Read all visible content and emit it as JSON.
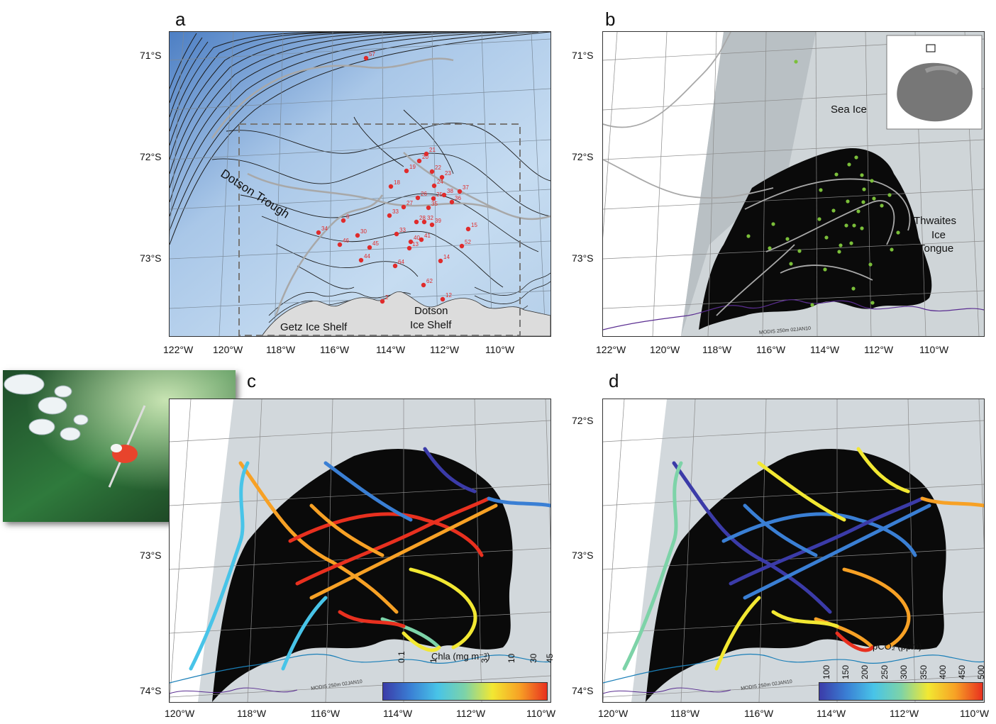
{
  "panels": {
    "a": {
      "letter": "a",
      "lat_labels": [
        "71°S",
        "72°S",
        "73°S"
      ],
      "lon_labels": [
        "122°W",
        "120°W",
        "118°W",
        "116°W",
        "114°W",
        "112°W",
        "110°W"
      ],
      "place_labels": {
        "trough": "Dotson Trough",
        "getz": "Getz Ice Shelf",
        "dotson_line1": "Dotson",
        "dotson_line2": "Ice Shelf"
      },
      "station_numbers": [
        "57",
        "21",
        "20",
        "22",
        "19",
        "23",
        "18",
        "24",
        "37",
        "26",
        "25",
        "38",
        "27",
        "35",
        "36",
        "28",
        "32",
        "33",
        "39",
        "15",
        "6",
        "30",
        "33",
        "34",
        "46",
        "40",
        "41",
        "45",
        "44",
        "13",
        "52",
        "64",
        "14",
        "62",
        "12",
        "2"
      ]
    },
    "b": {
      "letter": "b",
      "lat_labels": [
        "71°S",
        "72°S",
        "73°S"
      ],
      "lon_labels": [
        "122°W",
        "120°W",
        "118°W",
        "116°W",
        "114°W",
        "112°W",
        "110°W"
      ],
      "place_labels": {
        "sea_ice": "Sea Ice",
        "thwaites_1": "Thwaites",
        "thwaites_2": "Ice",
        "thwaites_3": "Tongue"
      },
      "modis_label": "MODIS 250m 02JAN10"
    },
    "c": {
      "letter": "c",
      "lat_labels": [
        "73°S",
        "74°S"
      ],
      "lon_labels": [
        "120°W",
        "118°W",
        "116°W",
        "114°W",
        "112°W",
        "110°W"
      ],
      "colorbar_title": "Chla (mg m⁻³)",
      "colorbar_ticks": [
        "0.1",
        "1",
        "3",
        "10",
        "30",
        "45"
      ],
      "modis_label": "MODIS 250m 02JAN10"
    },
    "d": {
      "letter": "d",
      "lat_labels": [
        "72°S",
        "73°S",
        "74°S"
      ],
      "lon_labels": [
        "120°W",
        "118°W",
        "116°W",
        "114°W",
        "112°W",
        "110°W"
      ],
      "colorbar_title": "pCO₂ (ppm)",
      "colorbar_ticks": [
        "100",
        "150",
        "200",
        "250",
        "300",
        "350",
        "400",
        "450",
        "500"
      ],
      "modis_label": "MODIS 250m 02JAN10"
    }
  },
  "colors": {
    "ocean_light": "#c5dcf0",
    "ocean_dark": "#5b8fcf",
    "station": "#e02b2b",
    "station_green": "#7bbf3a",
    "track_gray": "#a8a8a8",
    "polynya": "#0a0a0a",
    "ice": "#d7dde0",
    "coast": "#5a2d91"
  }
}
